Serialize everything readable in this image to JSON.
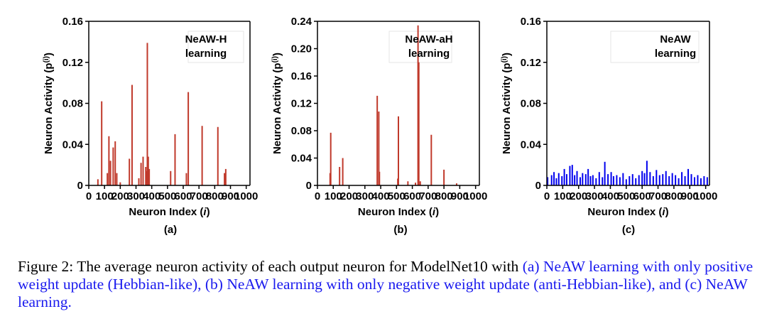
{
  "chart_data": [
    {
      "type": "bar",
      "panel_label": "(a)",
      "legend": [
        "NeAW-H",
        "learning"
      ],
      "ylabel": "Neuron Activity (p",
      "ylabel_sup": "(i)",
      "ylabel_close": ")",
      "xlabel_main": "Neuron Index (",
      "xlabel_italic": "i",
      "xlabel_close": ")",
      "xlim": [
        0,
        1024
      ],
      "ylim": [
        0,
        0.16
      ],
      "yticks": [
        0,
        0.04,
        0.08,
        0.12,
        0.16
      ],
      "ytick_labels": [
        "0",
        "0.04",
        "0.08",
        "0.12",
        "0.16"
      ],
      "xticks": [
        0,
        100,
        200,
        300,
        400,
        500,
        600,
        700,
        800,
        900,
        1000
      ],
      "xtick_labels": [
        "0",
        "100",
        "200",
        "300",
        "400",
        "500",
        "600",
        "700",
        "800",
        "900",
        "1000"
      ],
      "color": "#c0392b",
      "x": [
        58,
        82,
        118,
        128,
        138,
        155,
        168,
        178,
        200,
        258,
        275,
        318,
        332,
        345,
        362,
        366,
        372,
        378,
        384,
        520,
        548,
        620,
        632,
        720,
        820,
        862,
        870
      ],
      "values": [
        0.006,
        0.082,
        0.012,
        0.048,
        0.024,
        0.037,
        0.043,
        0.012,
        0.003,
        0.026,
        0.098,
        0.007,
        0.022,
        0.028,
        0.018,
        0.014,
        0.139,
        0.028,
        0.016,
        0.014,
        0.05,
        0.012,
        0.091,
        0.058,
        0.057,
        0.012,
        0.016
      ]
    },
    {
      "type": "bar",
      "panel_label": "(b)",
      "legend": [
        "NeAW-aH",
        "learning"
      ],
      "ylabel": "Neuron Activity (p",
      "ylabel_sup": "(i)",
      "ylabel_close": ")",
      "xlabel_main": "Neuron Index (",
      "xlabel_italic": "i",
      "xlabel_close": ")",
      "xlim": [
        0,
        1024
      ],
      "ylim": [
        0,
        0.24
      ],
      "yticks": [
        0,
        0.04,
        0.08,
        0.12,
        0.16,
        0.2,
        0.24
      ],
      "ytick_labels": [
        "0",
        "0.04",
        "0.08",
        "0.12",
        "0.16",
        "0.20",
        "0.24"
      ],
      "xticks": [
        0,
        100,
        200,
        300,
        400,
        500,
        600,
        700,
        800,
        900,
        1000
      ],
      "xtick_labels": [
        "0",
        "100",
        "200",
        "300",
        "400",
        "500",
        "600",
        "700",
        "800",
        "900",
        "1000"
      ],
      "color": "#c0392b",
      "x": [
        80,
        84,
        140,
        160,
        378,
        388,
        392,
        508,
        512,
        572,
        620,
        636,
        641,
        650,
        720,
        800,
        880
      ],
      "values": [
        0.018,
        0.077,
        0.027,
        0.04,
        0.131,
        0.108,
        0.02,
        0.01,
        0.101,
        0.006,
        0.004,
        0.234,
        0.18,
        0.006,
        0.074,
        0.023,
        0.003
      ]
    },
    {
      "type": "bar",
      "panel_label": "(c)",
      "legend": [
        "NeAW",
        "learning"
      ],
      "ylabel": "Neuron Activity (p",
      "ylabel_sup": "(i)",
      "ylabel_close": ")",
      "xlabel_main": "Neuron Index (",
      "xlabel_italic": "i",
      "xlabel_close": ")",
      "xlim": [
        0,
        1024
      ],
      "ylim": [
        0,
        0.16
      ],
      "yticks": [
        0,
        0.04,
        0.08,
        0.12,
        0.16
      ],
      "ytick_labels": [
        "0",
        "0.04",
        "0.08",
        "0.12",
        "0.16"
      ],
      "xticks": [
        0,
        100,
        200,
        300,
        400,
        500,
        600,
        700,
        800,
        900,
        1000
      ],
      "xtick_labels": [
        "0",
        "100",
        "200",
        "300",
        "400",
        "500",
        "600",
        "700",
        "800",
        "900",
        "1000"
      ],
      "color": "#0000ee",
      "x": [
        5,
        30,
        45,
        60,
        75,
        95,
        110,
        125,
        145,
        160,
        175,
        190,
        210,
        225,
        245,
        260,
        275,
        290,
        310,
        330,
        350,
        365,
        385,
        405,
        420,
        440,
        460,
        480,
        500,
        520,
        540,
        560,
        580,
        600,
        615,
        630,
        650,
        670,
        690,
        710,
        730,
        750,
        770,
        790,
        810,
        830,
        850,
        870,
        890,
        910,
        930,
        950,
        970,
        990,
        1010
      ],
      "values": [
        0.008,
        0.01,
        0.013,
        0.007,
        0.012,
        0.009,
        0.016,
        0.011,
        0.019,
        0.02,
        0.01,
        0.014,
        0.008,
        0.012,
        0.011,
        0.016,
        0.009,
        0.01,
        0.007,
        0.013,
        0.008,
        0.023,
        0.011,
        0.013,
        0.009,
        0.01,
        0.008,
        0.012,
        0.006,
        0.009,
        0.011,
        0.007,
        0.01,
        0.014,
        0.012,
        0.024,
        0.013,
        0.009,
        0.015,
        0.01,
        0.011,
        0.014,
        0.009,
        0.012,
        0.01,
        0.007,
        0.013,
        0.009,
        0.016,
        0.011,
        0.008,
        0.01,
        0.007,
        0.009,
        0.008
      ]
    }
  ],
  "caption": {
    "prefix": "Figure 2: The average neuron activity of each output neuron for ModelNet10 with ",
    "highlight": "(a) NeAW learning with only positive weight update (Hebbian-like), (b) NeAW learning with only negative weight update (anti-Hebbian-like), and (c) NeAW learning."
  }
}
